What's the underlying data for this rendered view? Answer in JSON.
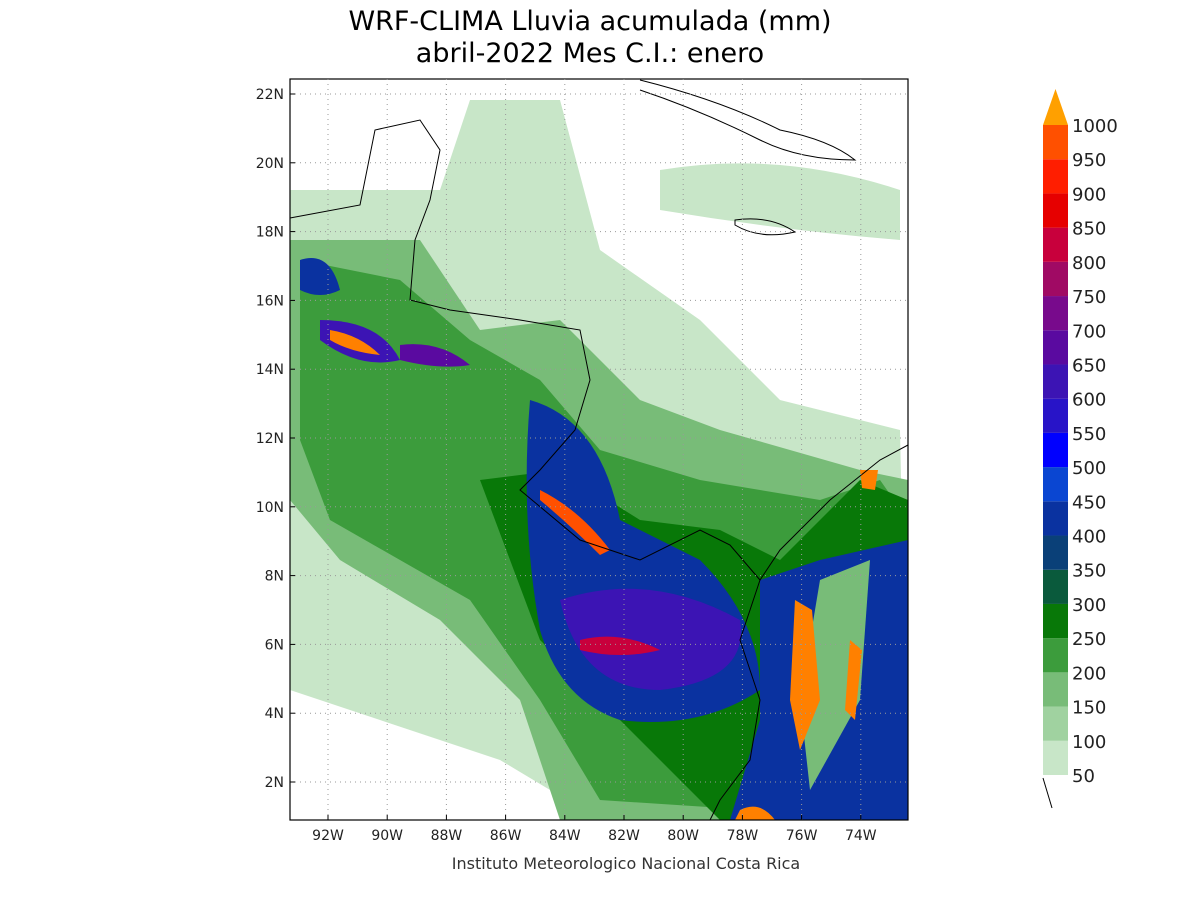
{
  "title": [
    "WRF-CLIMA Lluvia acumulada (mm)",
    "abril-2022 Mes C.I.: enero"
  ],
  "lat_labels": [
    "22N",
    "20N",
    "18N",
    "16N",
    "14N",
    "12N",
    "10N",
    "8N",
    "6N",
    "4N",
    "2N"
  ],
  "lon_labels": [
    "92W",
    "90W",
    "88W",
    "86W",
    "84W",
    "82W",
    "80W",
    "78W",
    "76W",
    "74W"
  ],
  "colorbar": {
    "levels": [
      50,
      100,
      150,
      200,
      250,
      300,
      350,
      400,
      450,
      500,
      550,
      600,
      650,
      700,
      750,
      800,
      850,
      900,
      950,
      1000
    ],
    "colors": [
      "#c8e6c8",
      "#a0d2a0",
      "#78bc78",
      "#3c9c3c",
      "#087808",
      "#0a5a3c",
      "#0a4078",
      "#0a32a0",
      "#0a46d2",
      "#0000ff",
      "#2814c8",
      "#3c14b4",
      "#5a0aa0",
      "#780a8c",
      "#a00a64",
      "#c8003c",
      "#e60000",
      "#ff1e00",
      "#ff5000",
      "#ff8000",
      "#ffa000"
    ]
  },
  "credit": "Instituto Meteorologico Nacional Costa Rica"
}
